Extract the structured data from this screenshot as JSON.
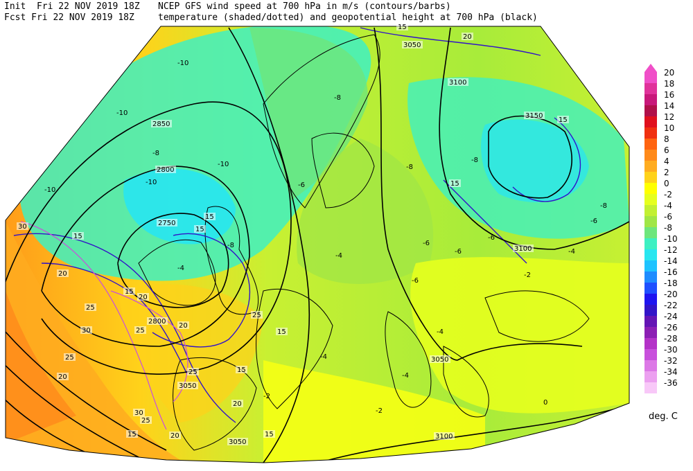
{
  "header": {
    "init_line": "Init  Fri 22 NOV 2019 18Z",
    "fcst_line": "Fcst Fri 22 NOV 2019 18Z",
    "title_line1": "NCEP GFS wind speed at 700 hPa in m/s (contours/barbs)",
    "title_line2": "temperature (shaded/dotted) and geopotential height at 700 hPa (black)"
  },
  "legend": {
    "unit_label": "deg. C",
    "levels": [
      {
        "label": "20",
        "color": "#f04fc8"
      },
      {
        "label": "18",
        "color": "#e0329a"
      },
      {
        "label": "16",
        "color": "#c8187a"
      },
      {
        "label": "14",
        "color": "#b0104a"
      },
      {
        "label": "12",
        "color": "#e0101e"
      },
      {
        "label": "10",
        "color": "#f03010"
      },
      {
        "label": "8",
        "color": "#ff6410"
      },
      {
        "label": "6",
        "color": "#ff8a1a"
      },
      {
        "label": "4",
        "color": "#ffac20"
      },
      {
        "label": "2",
        "color": "#ffd21a"
      },
      {
        "label": "0",
        "color": "#ffff00"
      },
      {
        "label": "-2",
        "color": "#e6ff1e"
      },
      {
        "label": "-4",
        "color": "#c2f032"
      },
      {
        "label": "-6",
        "color": "#a0e646"
      },
      {
        "label": "-8",
        "color": "#6ee67c"
      },
      {
        "label": "-10",
        "color": "#3ef0c2"
      },
      {
        "label": "-12",
        "color": "#28e6f0"
      },
      {
        "label": "-14",
        "color": "#1ec3ff"
      },
      {
        "label": "-16",
        "color": "#1e8cff"
      },
      {
        "label": "-18",
        "color": "#1e50ff"
      },
      {
        "label": "-20",
        "color": "#1e14f0"
      },
      {
        "label": "-22",
        "color": "#3214c8"
      },
      {
        "label": "-24",
        "color": "#6414b4"
      },
      {
        "label": "-26",
        "color": "#8c1eb4"
      },
      {
        "label": "-28",
        "color": "#b432c8"
      },
      {
        "label": "-30",
        "color": "#c850dc"
      },
      {
        "label": "-32",
        "color": "#dc78e6"
      },
      {
        "label": "-34",
        "color": "#eca0f0"
      },
      {
        "label": "-36",
        "color": "#f8c8f8"
      }
    ]
  },
  "height_labels": [
    "3050",
    "3100",
    "2850",
    "3150",
    "2800",
    "2750",
    "3100",
    "2800",
    "3050",
    "3050",
    "3100",
    "3050"
  ],
  "wind_labels": [
    "15",
    "20",
    "15",
    "15",
    "15",
    "15",
    "30",
    "15",
    "20",
    "25",
    "20",
    "25",
    "30",
    "25",
    "20",
    "30",
    "25",
    "15",
    "20",
    "15",
    "25",
    "20",
    "25",
    "15",
    "15",
    "20",
    "15"
  ],
  "temp_labels": [
    "-10",
    "-10",
    "-10",
    "-8",
    "-10",
    "-10",
    "-8",
    "-6",
    "-8",
    "-8",
    "-6",
    "-4",
    "-6",
    "-4",
    "-4",
    "-6",
    "-8",
    "-6",
    "-4",
    "-6",
    "-8",
    "-2",
    "-2",
    "0",
    "-4",
    "-2",
    "-4"
  ]
}
